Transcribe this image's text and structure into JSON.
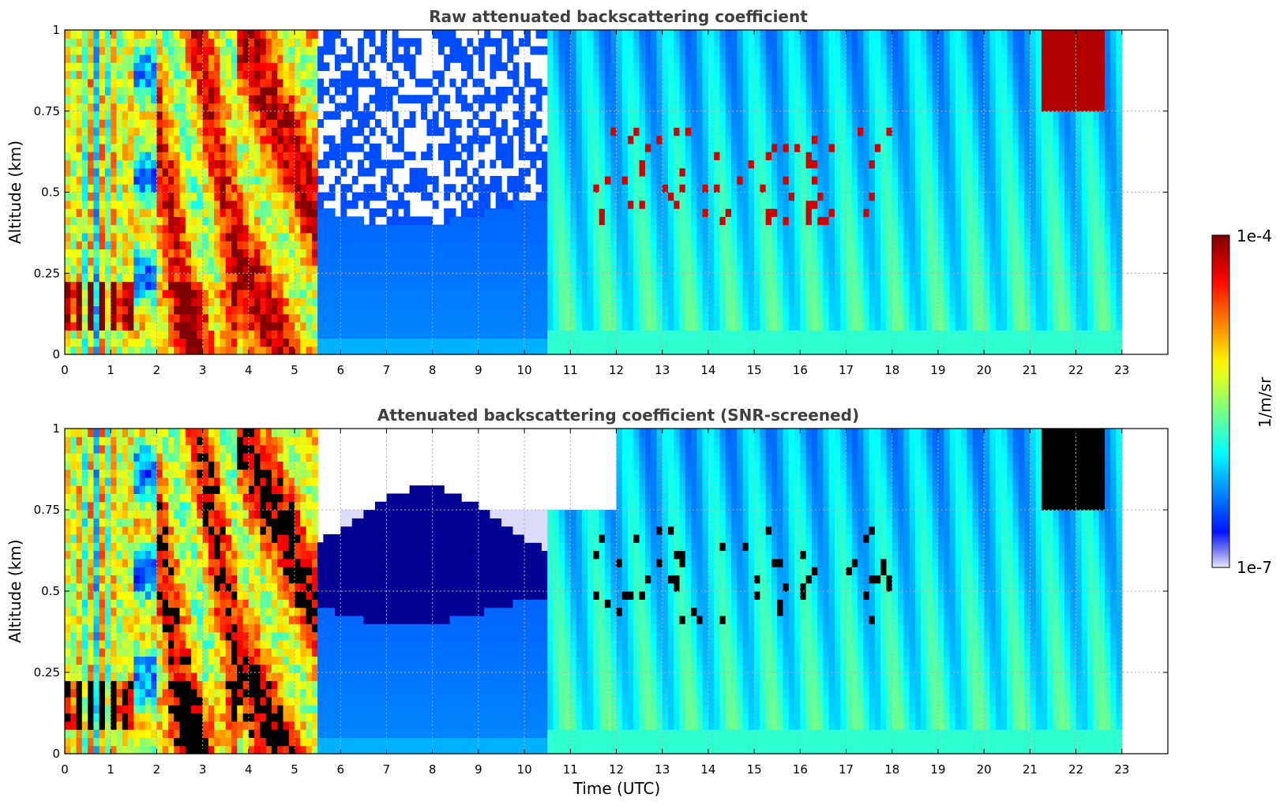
{
  "colors": {
    "jet": [
      "#00007f",
      "#0000ff",
      "#007fff",
      "#00ffff",
      "#7fff7f",
      "#ffff00",
      "#ff7f00",
      "#ff0000",
      "#7f0000"
    ],
    "low_pale": "#e8e8fa",
    "screened_mask": "#000000",
    "title": "#404040"
  },
  "colorbar": {
    "label": "1/m/sr",
    "max_label": "1e-4",
    "min_label": "1e-7",
    "scale": "log"
  },
  "chart_data": [
    {
      "type": "heatmap",
      "title": "Raw attenuated backscattering coefficient",
      "xlabel": "",
      "ylabel": "Altitude (km)",
      "xlim": [
        0,
        24
      ],
      "ylim": [
        0,
        1
      ],
      "x_ticks": [
        "0",
        "1",
        "2",
        "3",
        "4",
        "5",
        "6",
        "7",
        "8",
        "9",
        "10",
        "11",
        "12",
        "13",
        "14",
        "15",
        "16",
        "17",
        "18",
        "19",
        "20",
        "21",
        "22",
        "23"
      ],
      "y_ticks": [
        "0",
        "0.25",
        "0.5",
        "0.75",
        "1"
      ],
      "data_end_x": 23,
      "grid": true,
      "z_units": "1/m/sr",
      "z_scale": "log",
      "z_range": [
        1e-07,
        0.0001
      ]
    },
    {
      "type": "heatmap",
      "title": "Attenuated backscattering coefficient (SNR-screened)",
      "xlabel": "Time (UTC)",
      "ylabel": "Altitude (km)",
      "xlim": [
        0,
        24
      ],
      "ylim": [
        0,
        1
      ],
      "x_ticks": [
        "0",
        "1",
        "2",
        "3",
        "4",
        "5",
        "6",
        "7",
        "8",
        "9",
        "10",
        "11",
        "12",
        "13",
        "14",
        "15",
        "16",
        "17",
        "18",
        "19",
        "20",
        "21",
        "22",
        "23"
      ],
      "y_ticks": [
        "0",
        "0.25",
        "0.5",
        "0.75",
        "1"
      ],
      "data_end_x": 23,
      "grid": true,
      "z_units": "1/m/sr",
      "z_scale": "log",
      "z_range": [
        1e-07,
        0.0001
      ]
    }
  ]
}
